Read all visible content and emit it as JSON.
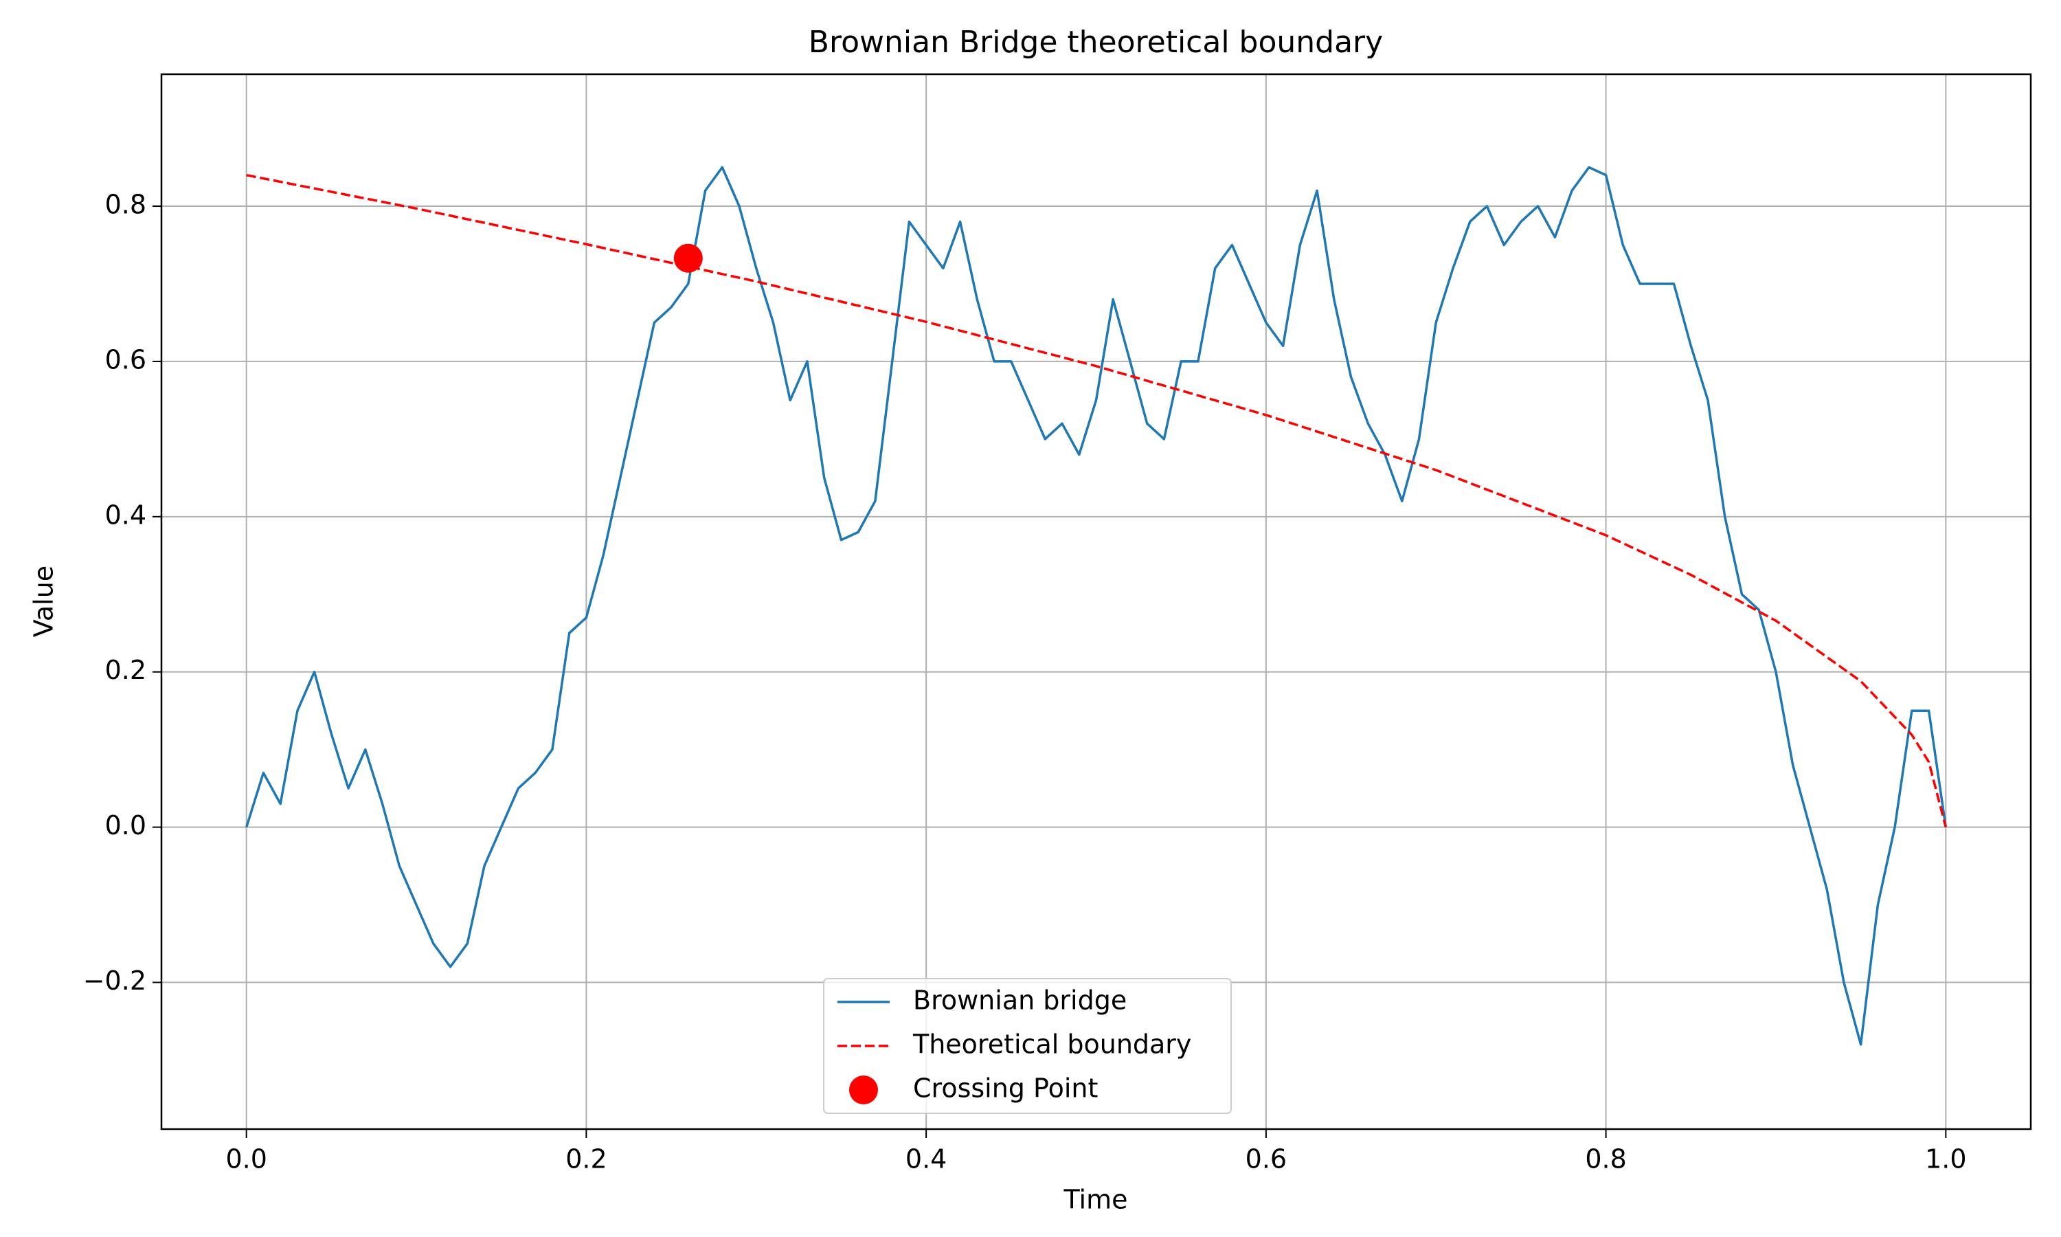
{
  "chart_data": {
    "type": "line",
    "title": "Brownian Bridge theoretical boundary",
    "x_label": "Time",
    "y_label": "Value",
    "xlim": [
      -0.05,
      1.05
    ],
    "ylim": [
      -0.389,
      0.97
    ],
    "xticks": [
      {
        "value": 0,
        "label": "0.0"
      },
      {
        "value": 0.2,
        "label": "0.2"
      },
      {
        "value": 0.4,
        "label": "0.4"
      },
      {
        "value": 0.6,
        "label": "0.6"
      },
      {
        "value": 0.8,
        "label": "0.8"
      },
      {
        "value": 1,
        "label": "1.0"
      }
    ],
    "yticks": [
      {
        "value": -0.2,
        "label": "−0.2"
      },
      {
        "value": 0,
        "label": "0.0"
      },
      {
        "value": 0.2,
        "label": "0.2"
      },
      {
        "value": 0.4,
        "label": "0.4"
      },
      {
        "value": 0.6,
        "label": "0.6"
      },
      {
        "value": 0.8,
        "label": "0.8"
      }
    ],
    "grid": true,
    "legend": "lower center",
    "series": [
      {
        "name": "Brownian bridge",
        "color": "#1f77b4",
        "style": "solid",
        "x": [
          0,
          0.01,
          0.02,
          0.03,
          0.04,
          0.05,
          0.06,
          0.07,
          0.08,
          0.09,
          0.1,
          0.11,
          0.12,
          0.13,
          0.14,
          0.15,
          0.16,
          0.17,
          0.18,
          0.19,
          0.2,
          0.21,
          0.22,
          0.23,
          0.24,
          0.25,
          0.26,
          0.27,
          0.28,
          0.29,
          0.3,
          0.31,
          0.32,
          0.33,
          0.34,
          0.35,
          0.36,
          0.37,
          0.38,
          0.39,
          0.4,
          0.41,
          0.42,
          0.43,
          0.44,
          0.45,
          0.46,
          0.47,
          0.48,
          0.49,
          0.5,
          0.51,
          0.52,
          0.53,
          0.54,
          0.55,
          0.56,
          0.57,
          0.58,
          0.59,
          0.6,
          0.61,
          0.62,
          0.63,
          0.64,
          0.65,
          0.66,
          0.67,
          0.68,
          0.69,
          0.7,
          0.71,
          0.72,
          0.73,
          0.74,
          0.75,
          0.76,
          0.77,
          0.78,
          0.79,
          0.8,
          0.81,
          0.82,
          0.83,
          0.84,
          0.85,
          0.86,
          0.87,
          0.88,
          0.89,
          0.9,
          0.91,
          0.92,
          0.93,
          0.94,
          0.95,
          0.96,
          0.97,
          0.98,
          0.99,
          1
        ],
        "values": [
          0,
          0.07,
          0.03,
          0.15,
          0.2,
          0.12,
          0.05,
          0.1,
          0.03,
          -0.05,
          -0.1,
          -0.15,
          -0.18,
          -0.15,
          -0.05,
          0,
          0.05,
          0.07,
          0.1,
          0.25,
          0.27,
          0.35,
          0.45,
          0.55,
          0.65,
          0.67,
          0.7,
          0.82,
          0.85,
          0.8,
          0.72,
          0.65,
          0.55,
          0.6,
          0.45,
          0.37,
          0.38,
          0.42,
          0.6,
          0.78,
          0.75,
          0.72,
          0.78,
          0.68,
          0.6,
          0.6,
          0.55,
          0.5,
          0.52,
          0.48,
          0.55,
          0.68,
          0.6,
          0.52,
          0.5,
          0.6,
          0.6,
          0.72,
          0.75,
          0.7,
          0.65,
          0.62,
          0.75,
          0.82,
          0.68,
          0.58,
          0.52,
          0.48,
          0.42,
          0.5,
          0.65,
          0.72,
          0.78,
          0.8,
          0.75,
          0.78,
          0.8,
          0.76,
          0.82,
          0.85,
          0.84,
          0.75,
          0.7,
          0.7,
          0.7,
          0.62,
          0.55,
          0.4,
          0.3,
          0.28,
          0.2,
          0.08,
          0,
          -0.08,
          -0.2,
          -0.28,
          -0.1,
          0,
          0.15,
          0.15,
          0
        ]
      },
      {
        "name": "Theoretical boundary",
        "color": "#ff0000",
        "style": "dashed",
        "x": [
          0,
          0.1,
          0.2,
          0.3,
          0.4,
          0.5,
          0.6,
          0.7,
          0.8,
          0.85,
          0.9,
          0.95,
          0.98,
          0.99,
          1
        ],
        "values": [
          0.84,
          0.797,
          0.751,
          0.703,
          0.651,
          0.594,
          0.531,
          0.46,
          0.376,
          0.325,
          0.266,
          0.188,
          0.119,
          0.084,
          0
        ]
      },
      {
        "name": "Crossing Point",
        "color": "#ff0000",
        "style": "marker",
        "x": [
          0.26
        ],
        "values": [
          0.733
        ]
      }
    ]
  }
}
